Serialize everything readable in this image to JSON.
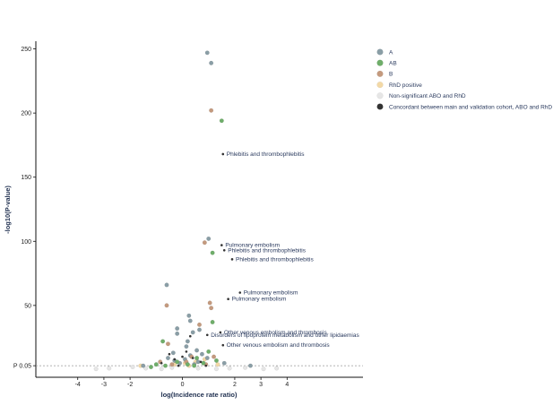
{
  "chart_data": {
    "type": "scatter",
    "title": "",
    "xlabel": "log(Incidence rate ratio)",
    "ylabel": "-log10(P-value)",
    "xlim": [
      -5.6,
      6.9
    ],
    "ylim": [
      -6,
      256
    ],
    "x_ticks": [
      -4,
      -3,
      -2,
      0,
      2,
      3,
      4
    ],
    "y_ticks": [
      {
        "value": 3,
        "label": "P 0.05"
      },
      {
        "value": 50,
        "label": "50"
      },
      {
        "value": 100,
        "label": "100"
      },
      {
        "value": 150,
        "label": "150"
      },
      {
        "value": 200,
        "label": "200"
      },
      {
        "value": 250,
        "label": "250"
      }
    ],
    "threshold_line": 3,
    "grid": false,
    "legend_position": "right",
    "colors": {
      "A": "#8a9ea6",
      "AB": "#6fae6a",
      "B": "#c49a7e",
      "RhD positive": "#f3d9a6",
      "Non-significant ABO and RhD": "#e6e6e6",
      "Concordant between main and validation cohort, ABO and RhD": "#333333"
    },
    "legend": [
      "A",
      "AB",
      "B",
      "RhD positive",
      "Non-significant ABO and RhD",
      "Concordant between main and validation cohort, ABO and RhD"
    ],
    "series": [
      {
        "name": "A",
        "points": [
          [
            0.95,
            247
          ],
          [
            1.1,
            239
          ],
          [
            1.0,
            102
          ],
          [
            -0.6,
            66
          ],
          [
            0.25,
            42
          ],
          [
            0.3,
            38
          ],
          [
            -0.2,
            32
          ],
          [
            -0.2,
            28
          ],
          [
            0.4,
            29
          ],
          [
            0.65,
            31
          ],
          [
            0.2,
            22
          ],
          [
            0.15,
            18
          ],
          [
            0.55,
            15
          ],
          [
            -0.35,
            13
          ],
          [
            0.3,
            11
          ],
          [
            0.95,
            9
          ],
          [
            -0.3,
            7
          ],
          [
            0.6,
            6
          ],
          [
            -0.1,
            5
          ],
          [
            0.45,
            4
          ],
          [
            1.6,
            5
          ],
          [
            -1.5,
            3
          ],
          [
            2.6,
            3
          ],
          [
            0.1,
            8
          ],
          [
            0.75,
            12
          ],
          [
            -0.55,
            9
          ]
        ]
      },
      {
        "name": "AB",
        "points": [
          [
            1.5,
            194
          ],
          [
            1.15,
            91
          ],
          [
            1.15,
            37
          ],
          [
            -0.75,
            22
          ],
          [
            1.0,
            14
          ],
          [
            0.55,
            9
          ],
          [
            -1.0,
            4
          ],
          [
            0.45,
            3
          ],
          [
            -0.2,
            6
          ],
          [
            1.3,
            7
          ],
          [
            -0.65,
            3
          ],
          [
            0.2,
            4
          ],
          [
            0.8,
            5
          ],
          [
            -1.2,
            2
          ]
        ]
      },
      {
        "name": "B",
        "points": [
          [
            1.1,
            202
          ],
          [
            0.85,
            99
          ],
          [
            -0.6,
            50
          ],
          [
            1.05,
            52
          ],
          [
            1.1,
            48
          ],
          [
            0.65,
            35
          ],
          [
            -0.55,
            20
          ],
          [
            0.35,
            10
          ],
          [
            0.15,
            6
          ],
          [
            0.9,
            4
          ],
          [
            -0.4,
            4
          ],
          [
            1.2,
            10
          ],
          [
            -0.85,
            6
          ]
        ]
      },
      {
        "name": "RhD positive",
        "points": [
          [
            0.1,
            5
          ],
          [
            0.5,
            6
          ],
          [
            -0.3,
            4
          ],
          [
            0.85,
            8
          ],
          [
            -1.6,
            3
          ],
          [
            0.25,
            3
          ],
          [
            1.35,
            4
          ]
        ]
      },
      {
        "name": "Non-significant ABO and RhD",
        "points": [
          [
            -2.8,
            1
          ],
          [
            -1.9,
            2
          ],
          [
            -1.4,
            1
          ],
          [
            -0.8,
            0.5
          ],
          [
            0.6,
            1
          ],
          [
            1.8,
            1
          ],
          [
            2.4,
            1.5
          ],
          [
            3.1,
            0.5
          ],
          [
            3.6,
            1
          ],
          [
            -3.3,
            0.5
          ],
          [
            -0.4,
            1.5
          ],
          [
            1.3,
            0.5
          ]
        ]
      },
      {
        "name": "Concordant between main and validation cohort, ABO and RhD",
        "points": [
          [
            1.55,
            168
          ],
          [
            1.5,
            97
          ],
          [
            1.6,
            93
          ],
          [
            1.9,
            86
          ],
          [
            2.2,
            60
          ],
          [
            1.75,
            55
          ],
          [
            1.45,
            29
          ],
          [
            0.95,
            27
          ],
          [
            0.3,
            26
          ],
          [
            1.55,
            19
          ],
          [
            -0.5,
            12
          ],
          [
            0.0,
            10
          ],
          [
            -0.3,
            8
          ],
          [
            0.7,
            6
          ],
          [
            0.4,
            9
          ],
          [
            -0.8,
            5
          ],
          [
            0.15,
            14
          ],
          [
            0.9,
            3
          ],
          [
            -0.15,
            3
          ]
        ]
      }
    ],
    "annotations": [
      {
        "text": "Phlebitis and thrombophlebitis",
        "x": 1.55,
        "y": 168
      },
      {
        "text": "Pulmonary embolism",
        "x": 1.5,
        "y": 97
      },
      {
        "text": "Phlebitis and thrombophlebitis",
        "x": 1.6,
        "y": 93
      },
      {
        "text": "Phlebitis and thrombophlebitis",
        "x": 1.9,
        "y": 86
      },
      {
        "text": "Pulmonary embolism",
        "x": 2.2,
        "y": 60
      },
      {
        "text": "Pulmonary embolism",
        "x": 1.75,
        "y": 55
      },
      {
        "text": "Other venous embolism and thrombosis",
        "x": 1.45,
        "y": 29
      },
      {
        "text": "Disorders of lipoprotein metabolism and other lipidaemias",
        "x": 0.95,
        "y": 27
      },
      {
        "text": "Other venous embolism and thrombosis",
        "x": 1.55,
        "y": 19
      }
    ]
  }
}
